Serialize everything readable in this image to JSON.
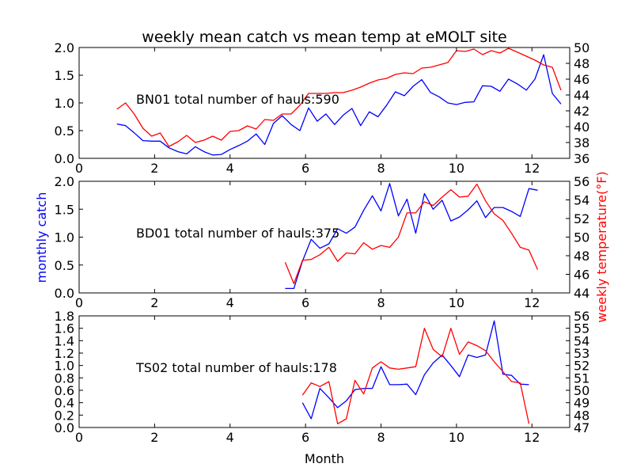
{
  "figure": {
    "title": "weekly mean catch vs mean temp at eMOLT site",
    "xlabel": "Month",
    "left_ylabel": "monthly catch",
    "right_ylabel": "weekly temperature(°F)",
    "colors": {
      "catch": "#0000ff",
      "temp": "#ff0000",
      "axis": "#000000"
    }
  },
  "chart_data": [
    {
      "type": "line",
      "annotation": "BN01 total number of hauls:590",
      "xlim": [
        0,
        13
      ],
      "ylim_left": [
        0,
        2.0
      ],
      "ylim_right": [
        36,
        50
      ],
      "x_ticks": [
        "0",
        "2",
        "4",
        "6",
        "8",
        "10",
        "12"
      ],
      "yleft_ticks": [
        "0.0",
        "0.5",
        "1.0",
        "1.5",
        "2.0"
      ],
      "yright_ticks": [
        "36",
        "38",
        "40",
        "42",
        "44",
        "46",
        "48",
        "50"
      ],
      "series": [
        {
          "axis": "left",
          "x": [
            1.0,
            1.23,
            1.46,
            1.69,
            1.92,
            2.15,
            2.38,
            2.62,
            2.85,
            3.08,
            3.31,
            3.54,
            3.77,
            4.0,
            4.23,
            4.46,
            4.69,
            4.92,
            5.15,
            5.38,
            5.62,
            5.85,
            6.08,
            6.31,
            6.54,
            6.77,
            7.0,
            7.23,
            7.46,
            7.69,
            7.92,
            8.15,
            8.38,
            8.62,
            8.85,
            9.08,
            9.31,
            9.54,
            9.77,
            10.0,
            10.23,
            10.46,
            10.69,
            10.92,
            11.15,
            11.38,
            11.62,
            11.85,
            12.08,
            12.31,
            12.54,
            12.77
          ],
          "y": [
            0.62,
            0.59,
            0.46,
            0.32,
            0.31,
            0.31,
            0.19,
            0.12,
            0.08,
            0.21,
            0.12,
            0.06,
            0.07,
            0.16,
            0.23,
            0.31,
            0.44,
            0.25,
            0.63,
            0.77,
            0.61,
            0.5,
            0.91,
            0.67,
            0.8,
            0.61,
            0.78,
            0.9,
            0.59,
            0.84,
            0.75,
            0.96,
            1.2,
            1.13,
            1.3,
            1.42,
            1.19,
            1.11,
            1.0,
            0.97,
            1.01,
            1.02,
            1.31,
            1.3,
            1.21,
            1.43,
            1.34,
            1.23,
            1.43,
            1.87,
            1.17,
            0.98
          ]
        },
        {
          "axis": "right",
          "x": [
            1.0,
            1.23,
            1.46,
            1.69,
            1.92,
            2.15,
            2.38,
            2.62,
            2.85,
            3.08,
            3.31,
            3.54,
            3.77,
            4.0,
            4.23,
            4.46,
            4.69,
            4.92,
            5.15,
            5.38,
            5.62,
            5.85,
            6.08,
            6.31,
            6.54,
            6.77,
            7.0,
            7.23,
            7.46,
            7.69,
            7.92,
            8.15,
            8.38,
            8.62,
            8.85,
            9.08,
            9.31,
            9.54,
            9.77,
            10.0,
            10.23,
            10.46,
            10.69,
            10.92,
            11.15,
            11.38,
            11.62,
            11.85,
            12.08,
            12.31,
            12.54,
            12.77
          ],
          "y": [
            42.2,
            43.0,
            41.6,
            39.8,
            38.8,
            39.2,
            37.5,
            38.1,
            38.9,
            38.0,
            38.3,
            38.8,
            38.3,
            39.4,
            39.5,
            40.1,
            39.7,
            40.9,
            40.8,
            41.6,
            41.6,
            42.7,
            44.2,
            44.2,
            44.2,
            44.3,
            44.3,
            44.6,
            45.0,
            45.5,
            45.9,
            46.1,
            46.6,
            46.8,
            46.7,
            47.4,
            47.5,
            47.8,
            48.1,
            49.6,
            49.5,
            49.8,
            49.1,
            49.6,
            49.3,
            49.9,
            49.4,
            48.9,
            48.4,
            47.8,
            47.5,
            44.6
          ]
        }
      ]
    },
    {
      "type": "line",
      "annotation": "BD01 total number of hauls:375",
      "xlim": [
        0,
        13
      ],
      "ylim_left": [
        0,
        2.0
      ],
      "ylim_right": [
        44,
        56
      ],
      "x_ticks": [
        "0",
        "2",
        "4",
        "6",
        "8",
        "10",
        "12"
      ],
      "yleft_ticks": [
        "0.0",
        "0.5",
        "1.0",
        "1.5",
        "2.0"
      ],
      "yright_ticks": [
        "44",
        "46",
        "48",
        "50",
        "52",
        "54",
        "56"
      ],
      "series": [
        {
          "axis": "left",
          "x": [
            5.46,
            5.69,
            5.92,
            6.15,
            6.38,
            6.62,
            6.85,
            7.08,
            7.31,
            7.54,
            7.77,
            8.0,
            8.23,
            8.46,
            8.69,
            8.92,
            9.15,
            9.38,
            9.62,
            9.85,
            10.08,
            10.31,
            10.54,
            10.77,
            11.0,
            11.23,
            11.46,
            11.69,
            11.92,
            12.15
          ],
          "y": [
            0.08,
            0.08,
            0.57,
            0.96,
            0.8,
            0.88,
            1.15,
            1.07,
            1.18,
            1.48,
            1.74,
            1.47,
            1.96,
            1.38,
            1.68,
            1.07,
            1.78,
            1.5,
            1.66,
            1.29,
            1.36,
            1.49,
            1.65,
            1.35,
            1.53,
            1.53,
            1.46,
            1.37,
            1.87,
            1.84
          ]
        },
        {
          "axis": "right",
          "x": [
            5.46,
            5.69,
            5.92,
            6.15,
            6.38,
            6.62,
            6.85,
            7.08,
            7.31,
            7.54,
            7.77,
            8.0,
            8.23,
            8.46,
            8.69,
            8.92,
            9.15,
            9.38,
            9.62,
            9.85,
            10.08,
            10.31,
            10.54,
            10.77,
            11.0,
            11.23,
            11.46,
            11.69,
            11.92,
            12.15
          ],
          "y": [
            47.3,
            45.0,
            47.5,
            47.6,
            48.1,
            48.9,
            47.4,
            48.3,
            48.2,
            49.4,
            48.7,
            49.1,
            48.9,
            50.0,
            52.6,
            52.6,
            53.8,
            53.4,
            54.3,
            55.1,
            54.3,
            54.4,
            55.7,
            53.9,
            52.5,
            51.8,
            50.4,
            48.9,
            48.6,
            46.5
          ]
        }
      ]
    },
    {
      "type": "line",
      "annotation": "TS02 total number of hauls:178",
      "xlim": [
        0,
        13
      ],
      "ylim_left": [
        0,
        1.8
      ],
      "ylim_right": [
        47,
        56
      ],
      "x_ticks": [
        "0",
        "2",
        "4",
        "6",
        "8",
        "10",
        "12"
      ],
      "yleft_ticks": [
        "0.0",
        "0.2",
        "0.4",
        "0.6",
        "0.8",
        "1.0",
        "1.2",
        "1.4",
        "1.6",
        "1.8"
      ],
      "yright_ticks": [
        "47",
        "48",
        "49",
        "50",
        "51",
        "52",
        "53",
        "54",
        "55",
        "56"
      ],
      "series": [
        {
          "axis": "left",
          "x": [
            5.92,
            6.15,
            6.38,
            6.62,
            6.85,
            7.08,
            7.31,
            7.54,
            7.77,
            8.0,
            8.23,
            8.46,
            8.69,
            8.92,
            9.15,
            9.38,
            9.62,
            9.85,
            10.08,
            10.31,
            10.54,
            10.77,
            11.0,
            11.23,
            11.46,
            11.69,
            11.92
          ],
          "y": [
            0.4,
            0.14,
            0.63,
            0.48,
            0.32,
            0.43,
            0.61,
            0.63,
            0.63,
            0.98,
            0.69,
            0.69,
            0.7,
            0.53,
            0.85,
            1.04,
            1.17,
            1.0,
            0.82,
            1.17,
            1.13,
            1.17,
            1.72,
            0.86,
            0.84,
            0.7,
            0.69
          ]
        },
        {
          "axis": "right",
          "x": [
            5.92,
            6.15,
            6.38,
            6.62,
            6.85,
            7.08,
            7.31,
            7.54,
            7.77,
            8.0,
            8.23,
            8.46,
            8.69,
            8.92,
            9.15,
            9.38,
            9.62,
            9.85,
            10.08,
            10.31,
            10.54,
            10.77,
            11.0,
            11.23,
            11.46,
            11.69,
            11.92
          ],
          "y": [
            49.6,
            50.6,
            50.3,
            50.7,
            47.3,
            47.7,
            50.8,
            49.7,
            51.8,
            52.3,
            51.8,
            51.7,
            51.8,
            51.9,
            55.0,
            53.3,
            52.7,
            55.0,
            52.9,
            53.9,
            53.6,
            53.2,
            52.3,
            51.5,
            50.7,
            50.6,
            47.3
          ]
        }
      ]
    }
  ]
}
